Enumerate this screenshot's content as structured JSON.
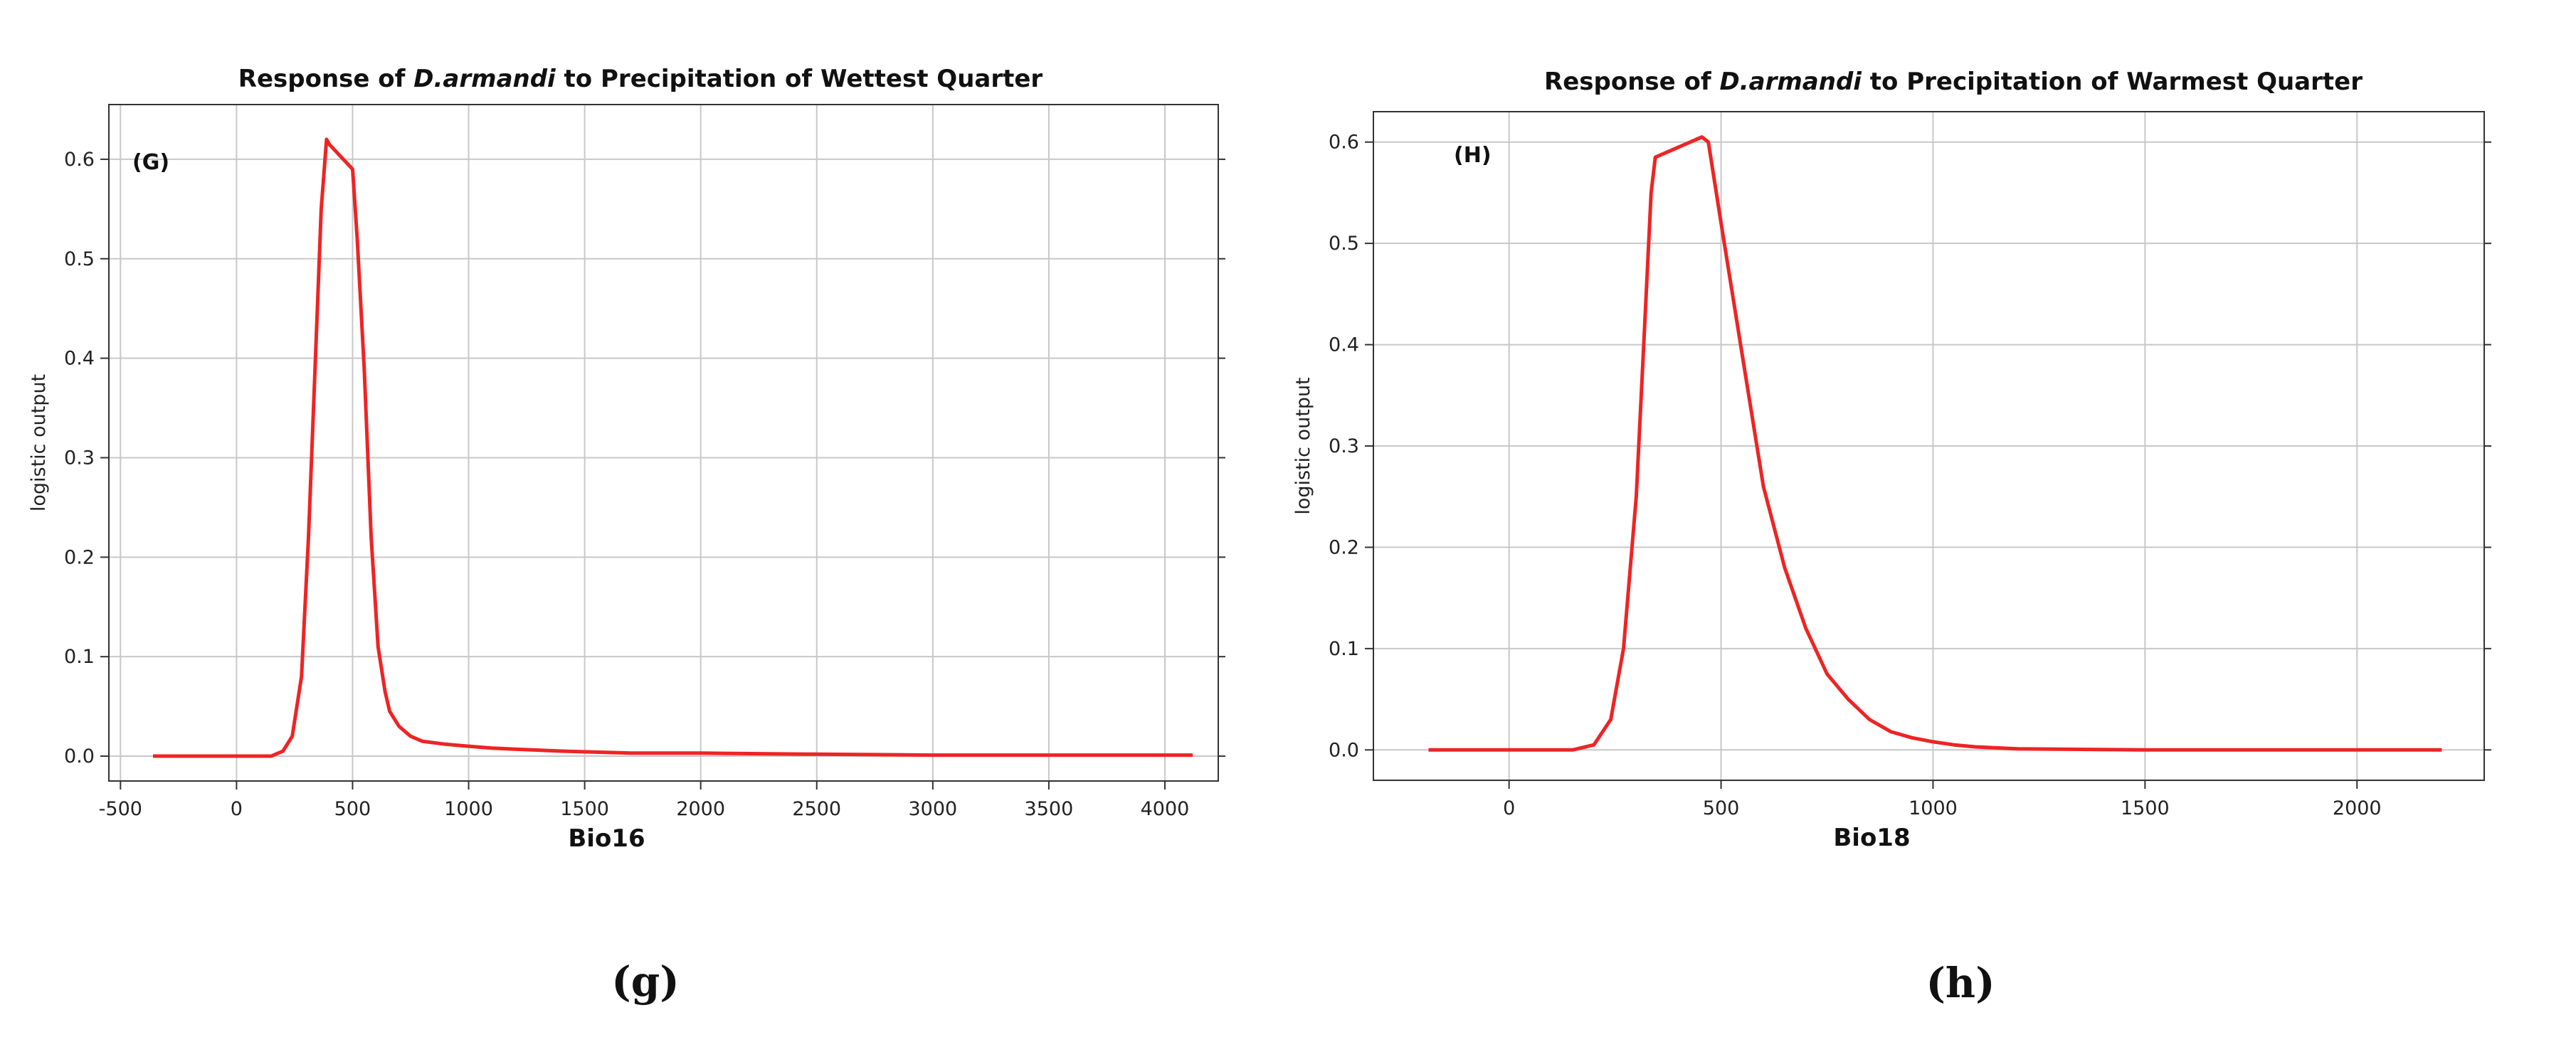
{
  "chart_data": [
    {
      "type": "line",
      "title_parts": [
        "Response of ",
        "D.armandi",
        " to Precipitation of Wettest Quarter"
      ],
      "xlabel": "Bio16",
      "ylabel": "logistic output",
      "panel_label": "(G)",
      "caption": "(g)",
      "xlim": [
        -550,
        4230
      ],
      "ylim": [
        -0.025,
        0.655
      ],
      "xticks": [
        -500,
        0,
        500,
        1000,
        1500,
        2000,
        2500,
        3000,
        3500,
        4000
      ],
      "xtick_labels": [
        "-500",
        "0",
        "500",
        "1000",
        "1500",
        "2000",
        "2500",
        "3000",
        "3500",
        "4000"
      ],
      "yticks": [
        0.0,
        0.1,
        0.2,
        0.3,
        0.4,
        0.5,
        0.6
      ],
      "ytick_labels": [
        "0.0",
        "0.1",
        "0.2",
        "0.3",
        "0.4",
        "0.5",
        "0.6"
      ],
      "grid": true,
      "line_color": "#ee2424",
      "series": [
        {
          "x": [
            -360,
            150,
            200,
            240,
            280,
            310,
            340,
            365,
            388,
            400,
            500,
            520,
            550,
            580,
            610,
            640,
            660,
            700,
            750,
            800,
            900,
            1000,
            1100,
            1200,
            1400,
            1700,
            2000,
            2450,
            3000,
            3500,
            4120
          ],
          "y": [
            0.0,
            0.0,
            0.005,
            0.02,
            0.08,
            0.22,
            0.4,
            0.55,
            0.62,
            0.615,
            0.59,
            0.52,
            0.39,
            0.22,
            0.11,
            0.065,
            0.045,
            0.03,
            0.02,
            0.015,
            0.012,
            0.01,
            0.008,
            0.007,
            0.005,
            0.003,
            0.003,
            0.002,
            0.001,
            0.001,
            0.001
          ]
        }
      ]
    },
    {
      "type": "line",
      "title_parts": [
        "Response of ",
        "D.armandi",
        " to Precipitation of Warmest Quarter"
      ],
      "xlabel": "Bio18",
      "ylabel": "logistic output",
      "panel_label": "(H)",
      "caption": "(h)",
      "xlim": [
        -320,
        2300
      ],
      "ylim": [
        -0.03,
        0.63
      ],
      "xticks": [
        0,
        500,
        1000,
        1500,
        2000
      ],
      "xtick_labels": [
        "0",
        "500",
        "1000",
        "1500",
        "2000"
      ],
      "yticks": [
        0.0,
        0.1,
        0.2,
        0.3,
        0.4,
        0.5,
        0.6
      ],
      "ytick_labels": [
        "0.0",
        "0.1",
        "0.2",
        "0.3",
        "0.4",
        "0.5",
        "0.6"
      ],
      "grid": true,
      "line_color": "#ee2424",
      "series": [
        {
          "x": [
            -190,
            150,
            200,
            240,
            270,
            300,
            320,
            335,
            345,
            400,
            455,
            470,
            500,
            550,
            600,
            650,
            700,
            750,
            800,
            850,
            900,
            950,
            1000,
            1050,
            1100,
            1200,
            1500,
            2000,
            2200
          ],
          "y": [
            0.0,
            0.0,
            0.005,
            0.03,
            0.1,
            0.25,
            0.42,
            0.55,
            0.585,
            0.595,
            0.605,
            0.6,
            0.52,
            0.39,
            0.26,
            0.18,
            0.12,
            0.075,
            0.05,
            0.03,
            0.018,
            0.012,
            0.008,
            0.005,
            0.003,
            0.001,
            0.0,
            0.0,
            0.0
          ]
        }
      ]
    }
  ]
}
